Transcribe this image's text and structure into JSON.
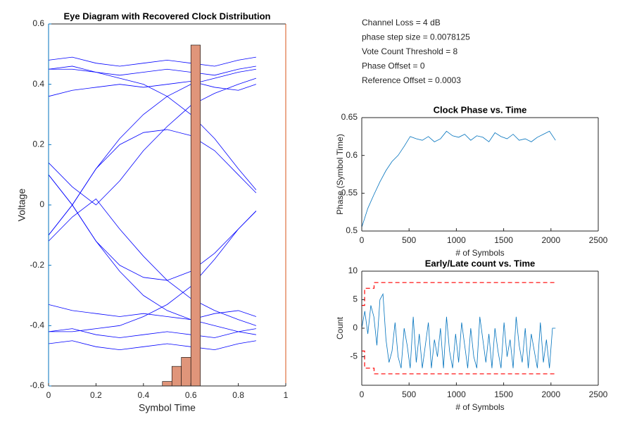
{
  "annotations": [
    "Channel Loss = 4 dB",
    "phase step size = 0.0078125",
    "Vote Count Threshold = 8",
    "Phase Offset = 0",
    "Reference Offset = 0.0003"
  ],
  "chart_data": [
    {
      "type": "line",
      "title": "Eye Diagram with Recovered Clock Distribution",
      "x_label": "Symbol Time",
      "y_label": "Voltage",
      "xlim": [
        0,
        1
      ],
      "xticks": [
        0,
        0.2,
        0.4,
        0.6,
        0.8,
        1
      ],
      "ylim": [
        -0.6,
        0.6
      ],
      "yticks": [
        -0.6,
        -0.4,
        -0.2,
        0,
        0.2,
        0.4,
        0.6
      ],
      "ycolor": "#0072bd",
      "y2color": "#d95319",
      "color": "#0000ff",
      "x": [
        0,
        0.1,
        0.2,
        0.3,
        0.4,
        0.5,
        0.6,
        0.7,
        0.8,
        0.875
      ],
      "series": [
        {
          "values": [
            0.45,
            0.46,
            0.44,
            0.43,
            0.44,
            0.45,
            0.44,
            0.43,
            0.45,
            0.46
          ]
        },
        {
          "values": [
            0.48,
            0.49,
            0.47,
            0.46,
            0.47,
            0.48,
            0.47,
            0.46,
            0.48,
            0.49
          ]
        },
        {
          "values": [
            0.36,
            0.38,
            0.39,
            0.4,
            0.39,
            0.4,
            0.41,
            0.39,
            0.38,
            0.4
          ]
        },
        {
          "values": [
            -0.42,
            -0.41,
            -0.43,
            -0.44,
            -0.43,
            -0.42,
            -0.43,
            -0.44,
            -0.42,
            -0.41
          ]
        },
        {
          "values": [
            -0.46,
            -0.45,
            -0.47,
            -0.48,
            -0.47,
            -0.46,
            -0.47,
            -0.48,
            -0.46,
            -0.45
          ]
        },
        {
          "values": [
            -0.33,
            -0.35,
            -0.36,
            -0.37,
            -0.36,
            -0.37,
            -0.38,
            -0.36,
            -0.35,
            -0.37
          ]
        },
        {
          "values": [
            -0.1,
            0.0,
            0.12,
            0.22,
            0.3,
            0.36,
            0.4,
            0.42,
            0.44,
            0.45
          ]
        },
        {
          "values": [
            0.1,
            0.0,
            -0.12,
            -0.22,
            -0.3,
            -0.35,
            -0.38,
            -0.4,
            -0.42,
            -0.43
          ]
        },
        {
          "values": [
            0.45,
            0.45,
            0.44,
            0.42,
            0.4,
            0.36,
            0.3,
            0.22,
            0.12,
            0.05
          ]
        },
        {
          "values": [
            -0.42,
            -0.42,
            -0.41,
            -0.4,
            -0.37,
            -0.33,
            -0.27,
            -0.18,
            -0.08,
            -0.02
          ]
        },
        {
          "values": [
            -0.1,
            0.0,
            0.12,
            0.2,
            0.24,
            0.25,
            0.23,
            0.18,
            0.1,
            0.04
          ]
        },
        {
          "values": [
            0.1,
            0.0,
            -0.12,
            -0.2,
            -0.24,
            -0.25,
            -0.22,
            -0.16,
            -0.08,
            -0.02
          ]
        },
        {
          "values": [
            0.14,
            0.06,
            0.0,
            0.08,
            0.18,
            0.26,
            0.33,
            0.37,
            0.4,
            0.42
          ]
        },
        {
          "values": [
            -0.12,
            -0.04,
            0.02,
            -0.08,
            -0.17,
            -0.25,
            -0.31,
            -0.35,
            -0.38,
            -0.4
          ]
        }
      ],
      "histogram": {
        "bins": [
          0.48,
          0.52,
          0.56,
          0.6,
          0.64
        ],
        "values": [
          -0.585,
          -0.535,
          -0.505,
          0.53
        ],
        "color": "#e0957a"
      }
    },
    {
      "type": "line",
      "title": "Clock Phase vs. Time",
      "x_label": "# of Symbols",
      "y_label": "Phase (Symbol Time)",
      "xlim": [
        0,
        2500
      ],
      "xticks": [
        0,
        500,
        1000,
        1500,
        2000,
        2500
      ],
      "ylim": [
        0.5,
        0.65
      ],
      "yticks": [
        0.5,
        0.55,
        0.6,
        0.65
      ],
      "x": [
        0,
        64,
        128,
        192,
        256,
        320,
        384,
        448,
        512,
        576,
        640,
        704,
        768,
        832,
        896,
        960,
        1024,
        1088,
        1152,
        1216,
        1280,
        1344,
        1408,
        1472,
        1536,
        1600,
        1664,
        1728,
        1792,
        1856,
        1920,
        1984,
        2048
      ],
      "series": [
        {
          "color": "#0072bd",
          "values": [
            0.505,
            0.53,
            0.548,
            0.565,
            0.58,
            0.592,
            0.6,
            0.612,
            0.625,
            0.622,
            0.62,
            0.625,
            0.618,
            0.622,
            0.632,
            0.626,
            0.624,
            0.628,
            0.62,
            0.626,
            0.624,
            0.618,
            0.63,
            0.625,
            0.622,
            0.628,
            0.62,
            0.622,
            0.618,
            0.624,
            0.628,
            0.632,
            0.62
          ]
        }
      ]
    },
    {
      "type": "line",
      "title": "Early/Late count vs. Time",
      "x_label": "# of Symbols",
      "y_label": "Count",
      "xlim": [
        0,
        2500
      ],
      "xticks": [
        0,
        500,
        1000,
        1500,
        2000,
        2500
      ],
      "ylim": [
        -10,
        10
      ],
      "yticks": [
        -5,
        0,
        5,
        10
      ],
      "series": [
        {
          "color": "#0072bd",
          "x": [
            0,
            32,
            64,
            96,
            128,
            160,
            192,
            224,
            256,
            288,
            320,
            352,
            384,
            416,
            448,
            480,
            512,
            544,
            576,
            608,
            640,
            672,
            704,
            736,
            768,
            800,
            832,
            864,
            896,
            928,
            960,
            992,
            1024,
            1056,
            1088,
            1120,
            1152,
            1184,
            1216,
            1248,
            1280,
            1312,
            1344,
            1376,
            1408,
            1440,
            1472,
            1504,
            1536,
            1568,
            1600,
            1632,
            1664,
            1696,
            1728,
            1760,
            1792,
            1824,
            1856,
            1888,
            1920,
            1952,
            1984,
            2016,
            2048
          ],
          "values": [
            0,
            3,
            -1,
            4,
            2,
            -3,
            5,
            6,
            -2,
            -6,
            -4,
            1,
            -5,
            -7,
            0,
            -3,
            -7,
            2,
            -6,
            -1,
            -7,
            -3,
            1,
            -7,
            -2,
            -5,
            0,
            -7,
            2,
            -4,
            -7,
            -1,
            -6,
            1,
            -3,
            -7,
            0,
            -5,
            -7,
            2,
            -2,
            -6,
            -1,
            -7,
            0,
            -4,
            -7,
            1,
            -5,
            -2,
            -7,
            2,
            -3,
            -6,
            0,
            -7,
            -1,
            -4,
            -7,
            1,
            -6,
            -2,
            -7,
            0,
            0
          ]
        },
        {
          "color": "#ff0000",
          "dash": true,
          "x": [
            0,
            30,
            30,
            130,
            130,
            2048
          ],
          "values": [
            4,
            4,
            7,
            7,
            8,
            8
          ]
        },
        {
          "color": "#ff0000",
          "dash": true,
          "x": [
            0,
            30,
            30,
            130,
            130,
            2048
          ],
          "values": [
            -4,
            -4,
            -7,
            -7,
            -8,
            -8
          ]
        }
      ]
    }
  ]
}
